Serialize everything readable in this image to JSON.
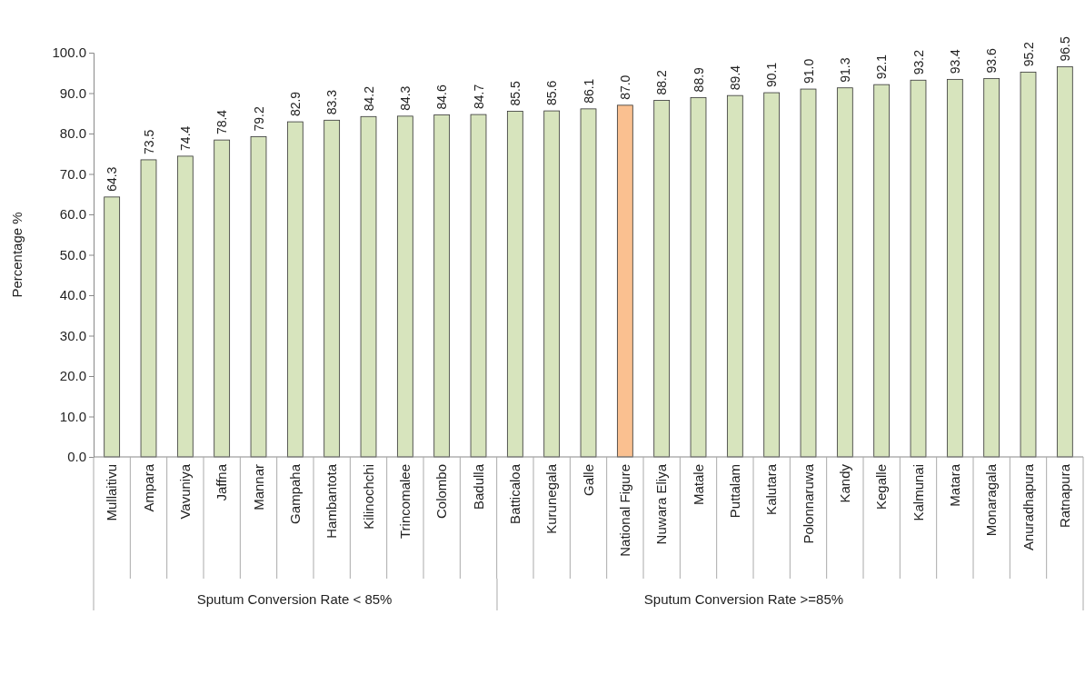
{
  "chart_data": {
    "type": "bar",
    "ylabel": "Percentage %",
    "categories": [
      "Mullaitivu",
      "Ampara",
      "Vavuniya",
      "Jaffna",
      "Mannar",
      "Gampaha",
      "Hambantota",
      "Kilinochchi",
      "Trincomalee",
      "Colombo",
      "Badulla",
      "Batticaloa",
      "Kurunegala",
      "Galle",
      "National Figure",
      "Nuwara Eliya",
      "Matale",
      "Puttalam",
      "Kalutara",
      "Polonnaruwa",
      "Kandy",
      "Kegalle",
      "Kalmunai",
      "Matara",
      "Monaragala",
      "Anuradhapura",
      "Ratnapura"
    ],
    "values": [
      64.3,
      73.5,
      74.4,
      78.4,
      79.2,
      82.9,
      83.3,
      84.2,
      84.3,
      84.6,
      84.7,
      85.5,
      85.6,
      86.1,
      87.0,
      88.2,
      88.9,
      89.4,
      90.1,
      91.0,
      91.3,
      92.1,
      93.2,
      93.4,
      93.6,
      95.2,
      96.5
    ],
    "colors": [
      "#d7e4bd",
      "#d7e4bd",
      "#d7e4bd",
      "#d7e4bd",
      "#d7e4bd",
      "#d7e4bd",
      "#d7e4bd",
      "#d7e4bd",
      "#d7e4bd",
      "#d7e4bd",
      "#d7e4bd",
      "#d7e4bd",
      "#d7e4bd",
      "#d7e4bd",
      "#fac090",
      "#d7e4bd",
      "#d7e4bd",
      "#d7e4bd",
      "#d7e4bd",
      "#d7e4bd",
      "#d7e4bd",
      "#d7e4bd",
      "#d7e4bd",
      "#d7e4bd",
      "#d7e4bd",
      "#d7e4bd",
      "#d7e4bd"
    ],
    "value_labels": [
      "64.3",
      "73.5",
      "74.4",
      "78.4",
      "79.2",
      "82.9",
      "83.3",
      "84.2",
      "84.3",
      "84.6",
      "84.7",
      "85.5",
      "85.6",
      "86.1",
      "87.0",
      "88.2",
      "88.9",
      "89.4",
      "90.1",
      "91.0",
      "91.3",
      "92.1",
      "93.2",
      "93.4",
      "93.6",
      "95.2",
      "96.5"
    ],
    "ylim": [
      0,
      100
    ],
    "yticks": [
      {
        "value": 0,
        "label": "0.0"
      },
      {
        "value": 10,
        "label": "10.0"
      },
      {
        "value": 20,
        "label": "20.0"
      },
      {
        "value": 30,
        "label": "30.0"
      },
      {
        "value": 40,
        "label": "40.0"
      },
      {
        "value": 50,
        "label": "50.0"
      },
      {
        "value": 60,
        "label": "60.0"
      },
      {
        "value": 70,
        "label": "70.0"
      },
      {
        "value": 80,
        "label": "80.0"
      },
      {
        "value": 90,
        "label": "90.0"
      },
      {
        "value": 100,
        "label": "100.0"
      }
    ],
    "annotations": [
      "Sputum Conversion Rate < 85%",
      "Sputum Conversion Rate >=85%"
    ],
    "grid": false
  }
}
